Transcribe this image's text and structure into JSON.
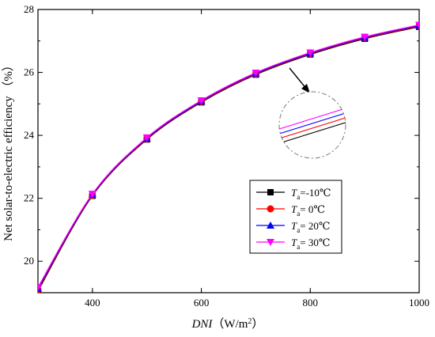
{
  "chart_data": {
    "type": "line",
    "xlabel_italic": "DNI",
    "xlabel_unit": "（W/m",
    "xlabel_sup": "2",
    "xlabel_close": "）",
    "ylabel": "Net solar-to-electric efficiency （%）",
    "xlim": [
      300,
      1000
    ],
    "ylim": [
      19,
      28
    ],
    "xticks": [
      "400",
      "600",
      "800",
      "1000"
    ],
    "yticks": [
      "20",
      "22",
      "24",
      "26",
      "28"
    ],
    "x": [
      300,
      400,
      500,
      600,
      700,
      800,
      900,
      1000
    ],
    "legend_position": "lower-right",
    "series": [
      {
        "name_main": "T",
        "name_sub": "a",
        "name_rest": "=-10℃",
        "color": "#000000",
        "marker": "square",
        "values": [
          19.05,
          22.08,
          23.87,
          25.05,
          25.93,
          26.57,
          27.07,
          27.45
        ]
      },
      {
        "name_main": "T",
        "name_sub": "a",
        "name_rest": "=   0℃",
        "color": "#ff0000",
        "marker": "circle",
        "values": [
          19.09,
          22.1,
          23.89,
          25.07,
          25.95,
          26.59,
          27.09,
          27.47
        ]
      },
      {
        "name_main": "T",
        "name_sub": "a",
        "name_rest": "= 20℃",
        "color": "#0000ff",
        "marker": "triangle-up",
        "values": [
          19.13,
          22.12,
          23.91,
          25.09,
          25.97,
          26.61,
          27.11,
          27.49
        ]
      },
      {
        "name_main": "T",
        "name_sub": "a",
        "name_rest": "= 30℃",
        "color": "#ff00ff",
        "marker": "triangle-down",
        "values": [
          19.17,
          22.14,
          23.93,
          25.11,
          25.99,
          26.63,
          27.13,
          27.51
        ]
      }
    ],
    "inset_line_colors": [
      "#000000",
      "#ff0000",
      "#0000ff",
      "#ff00ff"
    ]
  }
}
